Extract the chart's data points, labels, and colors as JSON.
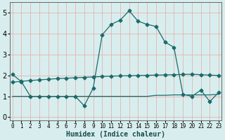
{
  "xlabel": "Humidex (Indice chaleur)",
  "background_color": "#d8eeee",
  "grid_color": "#e8b0b0",
  "line_color": "#1a6b6b",
  "x_ticks": [
    0,
    1,
    2,
    3,
    4,
    5,
    6,
    7,
    8,
    9,
    10,
    11,
    12,
    13,
    14,
    15,
    16,
    17,
    18,
    19,
    20,
    21,
    22,
    23
  ],
  "y_ticks": [
    0,
    1,
    2,
    3,
    4,
    5
  ],
  "ylim": [
    -0.15,
    5.5
  ],
  "xlim": [
    -0.3,
    23.3
  ],
  "curve1_x": [
    0,
    1,
    2,
    3,
    4,
    5,
    6,
    7,
    8,
    9,
    10,
    11,
    12,
    13,
    14,
    15,
    16,
    17,
    18,
    19,
    20,
    21,
    22,
    23
  ],
  "curve1_y": [
    2.05,
    1.7,
    1.0,
    1.0,
    1.0,
    1.0,
    1.0,
    1.0,
    0.55,
    1.4,
    3.95,
    4.45,
    4.65,
    5.1,
    4.6,
    4.45,
    4.35,
    3.6,
    3.35,
    1.1,
    1.0,
    1.3,
    0.75,
    1.2
  ],
  "curve2_x": [
    0,
    1,
    2,
    3,
    4,
    5,
    6,
    7,
    8,
    9,
    10,
    11,
    12,
    13,
    14,
    15,
    16,
    17,
    18,
    19,
    20,
    21,
    22,
    23
  ],
  "curve2_y": [
    1.68,
    1.72,
    1.76,
    1.79,
    1.82,
    1.85,
    1.87,
    1.89,
    1.91,
    1.93,
    1.95,
    1.97,
    1.98,
    1.99,
    2.0,
    2.01,
    2.02,
    2.03,
    2.04,
    2.05,
    2.06,
    2.04,
    2.02,
    2.0
  ],
  "curve3_x": [
    0,
    1,
    2,
    3,
    4,
    5,
    6,
    7,
    8,
    9,
    10,
    11,
    12,
    13,
    14,
    15,
    16,
    17,
    18,
    19,
    20,
    21,
    22,
    23
  ],
  "curve3_y": [
    1.0,
    1.0,
    1.0,
    1.0,
    1.0,
    1.0,
    1.0,
    1.0,
    1.0,
    1.0,
    1.0,
    1.0,
    1.0,
    1.0,
    1.0,
    1.0,
    1.05,
    1.05,
    1.07,
    1.07,
    1.07,
    1.07,
    1.07,
    1.1
  ]
}
